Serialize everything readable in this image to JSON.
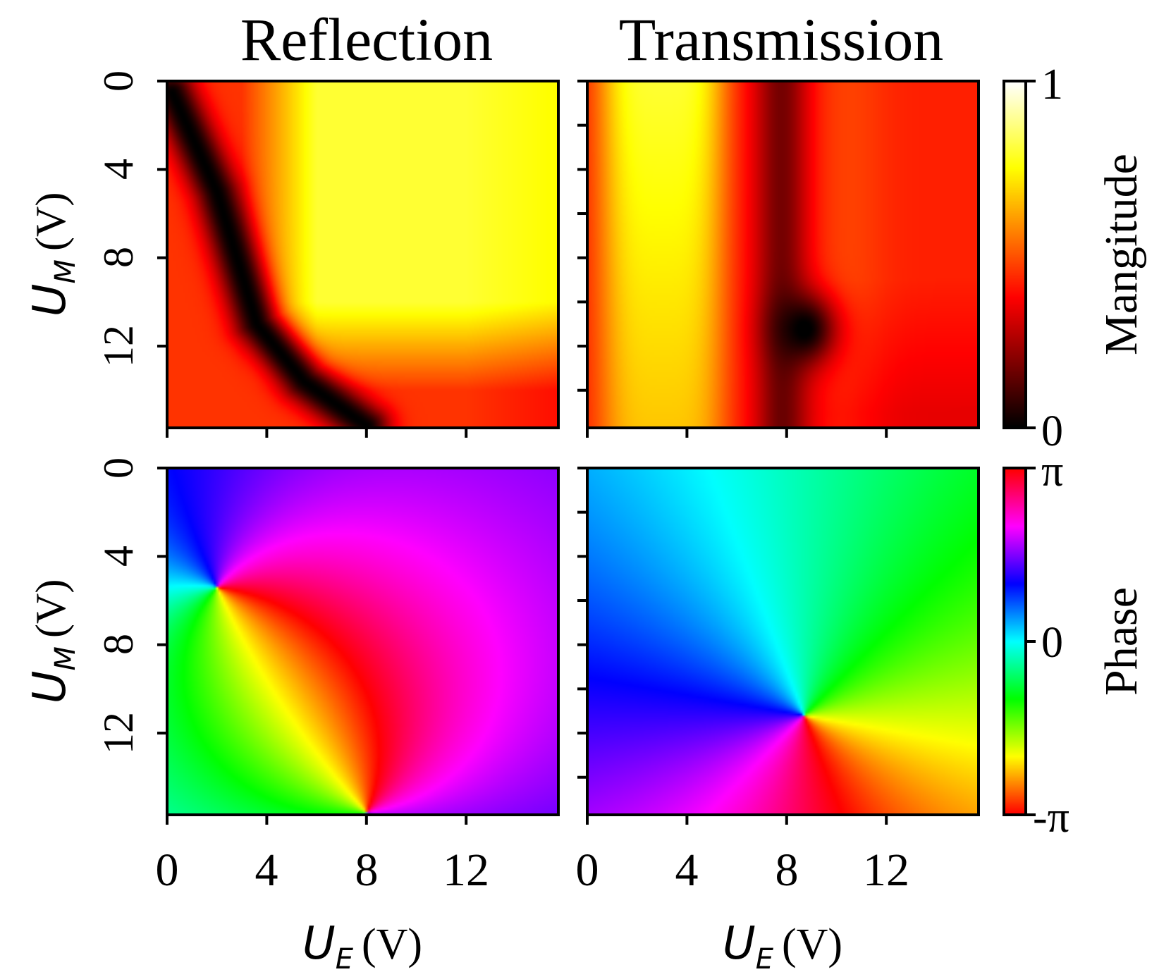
{
  "figure": {
    "column_titles": [
      "Reflection",
      "Transmission"
    ]
  },
  "axes": {
    "x_label_var": "U",
    "x_label_sub": "E",
    "x_label_unit": "(V)",
    "y_label_var": "U",
    "y_label_sub": "M",
    "y_label_unit": "(V)",
    "x_ticks": [
      0,
      4,
      8,
      12
    ],
    "y_ticks": [
      0,
      4,
      8,
      12
    ],
    "range": [
      0,
      15.7
    ]
  },
  "colorbars": {
    "magnitude": {
      "label": "Mangitude",
      "min_label": "0",
      "max_label": "1",
      "range": [
        0,
        1
      ],
      "colormap": "hot"
    },
    "phase": {
      "label": "Phase",
      "min_label": "-π",
      "mid_label": "0",
      "max_label": "π",
      "range": [
        -3.1416,
        3.1416
      ],
      "colormap": "hsv"
    }
  },
  "chart_data": [
    {
      "type": "heatmap",
      "name": "reflection-magnitude",
      "title": "Reflection",
      "xlabel": "U_E (V)",
      "ylabel": "U_M (V)",
      "xlim": [
        0,
        15.7
      ],
      "ylim": [
        0,
        15.7
      ],
      "colormap": "hot",
      "zlim": [
        0,
        1
      ],
      "features": {
        "zero_reflection_curve_points": [
          [
            0.2,
            0.5
          ],
          [
            2.0,
            5.0
          ],
          [
            3.6,
            11.0
          ],
          [
            5.5,
            13.6
          ],
          [
            8.0,
            15.6
          ]
        ],
        "max_region": {
          "ue_range": [
            6,
            12
          ],
          "um_range": [
            0,
            10
          ],
          "value": 0.85
        }
      }
    },
    {
      "type": "heatmap",
      "name": "transmission-magnitude",
      "title": "Transmission",
      "xlabel": "U_E (V)",
      "ylabel": "U_M (V)",
      "xlim": [
        0,
        15.7
      ],
      "ylim": [
        0,
        15.7
      ],
      "colormap": "hot",
      "zlim": [
        0,
        1
      ],
      "features": {
        "zero_transmission_point": [
          8.7,
          11.2
        ],
        "high_band_ue_range": [
          0.5,
          5.5
        ],
        "dark_band_ue_center": 7.8
      }
    },
    {
      "type": "heatmap",
      "name": "reflection-phase",
      "title": "Reflection",
      "xlabel": "U_E (V)",
      "ylabel": "U_M (V)",
      "xlim": [
        0,
        15.7
      ],
      "ylim": [
        0,
        15.7
      ],
      "colormap": "hsv",
      "zlim": [
        -3.1416,
        3.1416
      ],
      "features": {
        "phase_singularities": [
          [
            2.0,
            5.4
          ],
          [
            8.0,
            15.6
          ]
        ]
      }
    },
    {
      "type": "heatmap",
      "name": "transmission-phase",
      "title": "Transmission",
      "xlabel": "U_E (V)",
      "ylabel": "U_M (V)",
      "xlim": [
        0,
        15.7
      ],
      "ylim": [
        0,
        15.7
      ],
      "colormap": "hsv",
      "zlim": [
        -3.1416,
        3.1416
      ],
      "features": {
        "phase_singularity": [
          8.7,
          11.2
        ]
      }
    }
  ]
}
